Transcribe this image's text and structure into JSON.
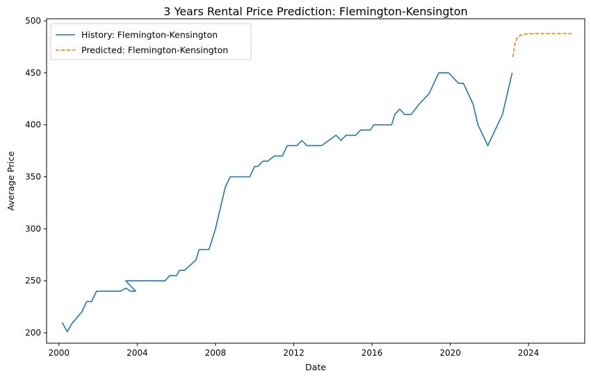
{
  "chart_data": {
    "type": "line",
    "title": "3 Years Rental Price Prediction: Flemington-Kensington",
    "xlabel": "Date",
    "ylabel": "Average Price",
    "xlim": [
      "1999-05-15",
      "2026-11-15"
    ],
    "ylim": [
      190,
      502
    ],
    "x_ticks": [
      "2000",
      "2004",
      "2008",
      "2012",
      "2016",
      "2020",
      "2024"
    ],
    "y_ticks": [
      200,
      250,
      300,
      350,
      400,
      450,
      500
    ],
    "grid": false,
    "legend_position": "top-left",
    "series": [
      {
        "name": "History: Flemington-Kensington",
        "color": "#1f77b4",
        "style": "solid",
        "x": [
          "2000-03-01",
          "2000-06-01",
          "2000-09-01",
          "2001-03-01",
          "2001-06-01",
          "2001-09-01",
          "2001-12-01",
          "2003-03-01",
          "2003-06-01",
          "2003-09-01",
          "2003-12-01",
          "2003-06-01",
          "2005-06-01",
          "2005-09-01",
          "2006-01-01",
          "2006-03-01",
          "2006-06-01",
          "2007-01-01",
          "2007-03-01",
          "2007-09-01",
          "2008-01-01",
          "2008-07-01",
          "2008-10-01",
          "2009-02-01",
          "2009-10-01",
          "2010-01-01",
          "2010-03-01",
          "2010-06-01",
          "2010-09-01",
          "2011-01-01",
          "2011-06-01",
          "2011-09-01",
          "2012-03-01",
          "2012-06-01",
          "2012-09-01",
          "2013-06-01",
          "2014-03-01",
          "2014-06-01",
          "2014-09-01",
          "2015-03-01",
          "2015-06-01",
          "2015-12-01",
          "2016-02-01",
          "2016-06-01",
          "2017-01-01",
          "2017-03-01",
          "2017-06-01",
          "2017-09-01",
          "2018-01-01",
          "2018-06-01",
          "2018-12-01",
          "2019-06-01",
          "2019-12-01",
          "2020-06-01",
          "2020-09-01",
          "2021-03-01",
          "2021-06-01",
          "2021-12-01",
          "2022-09-01",
          "2023-03-01"
        ],
        "y": [
          210,
          201,
          209,
          220,
          230,
          230,
          240,
          240,
          243,
          240,
          240,
          250,
          250,
          255,
          255,
          260,
          260,
          270,
          280,
          280,
          300,
          340,
          350,
          350,
          350,
          360,
          360,
          365,
          365,
          370,
          370,
          380,
          380,
          385,
          380,
          380,
          390,
          385,
          390,
          390,
          395,
          395,
          400,
          400,
          400,
          410,
          415,
          410,
          410,
          420,
          430,
          450,
          450,
          440,
          440,
          420,
          400,
          380,
          410,
          450
        ]
      },
      {
        "name": "Predicted: Flemington-Kensington",
        "color": "#ff7f0e",
        "style": "dashed",
        "x": [
          "2023-03-15",
          "2023-04-15",
          "2023-05-15",
          "2023-06-15",
          "2023-08-15",
          "2023-10-15",
          "2024-01-15",
          "2024-06-15",
          "2025-01-15",
          "2025-06-15",
          "2026-01-15",
          "2026-03-15"
        ],
        "y": [
          465,
          477,
          482,
          484.5,
          486.5,
          487.3,
          487.6,
          487.8,
          487.8,
          487.8,
          487.8,
          487.8
        ]
      }
    ]
  }
}
